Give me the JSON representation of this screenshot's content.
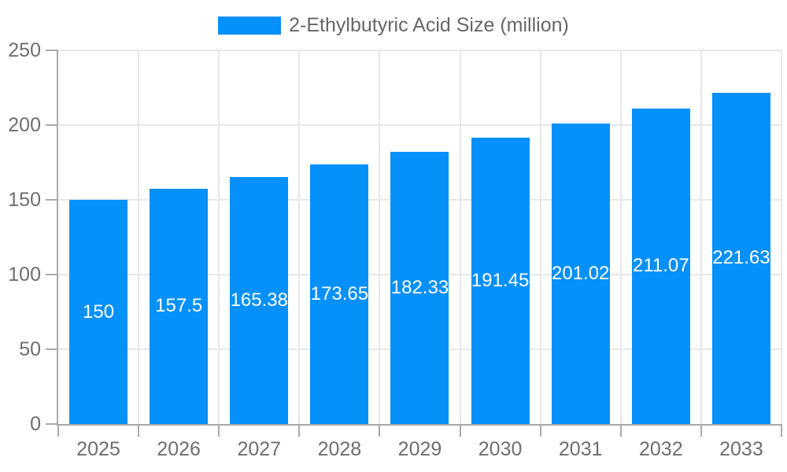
{
  "chart_data": {
    "type": "bar",
    "title": "2-Ethylbutyric Acid Size (million)",
    "categories": [
      "2025",
      "2026",
      "2027",
      "2028",
      "2029",
      "2030",
      "2031",
      "2032",
      "2033"
    ],
    "values": [
      150,
      157.5,
      165.38,
      173.65,
      182.33,
      191.45,
      201.02,
      211.07,
      221.63
    ],
    "value_labels": [
      "150",
      "157.5",
      "165.38",
      "173.65",
      "182.33",
      "191.45",
      "201.02",
      "211.07",
      "221.63"
    ],
    "yticks": [
      "0",
      "50",
      "100",
      "150",
      "200",
      "250"
    ],
    "ylim": [
      0,
      250
    ],
    "ytick_step": 50,
    "grid": true,
    "legend_position": "top",
    "colors": {
      "bar": "#0590fa",
      "value_label": "#ffffff",
      "axis": "#a9a9a9",
      "grid": "#e7e7e7",
      "tick_text": "#6e6e6e",
      "legend_text": "#666666"
    }
  }
}
